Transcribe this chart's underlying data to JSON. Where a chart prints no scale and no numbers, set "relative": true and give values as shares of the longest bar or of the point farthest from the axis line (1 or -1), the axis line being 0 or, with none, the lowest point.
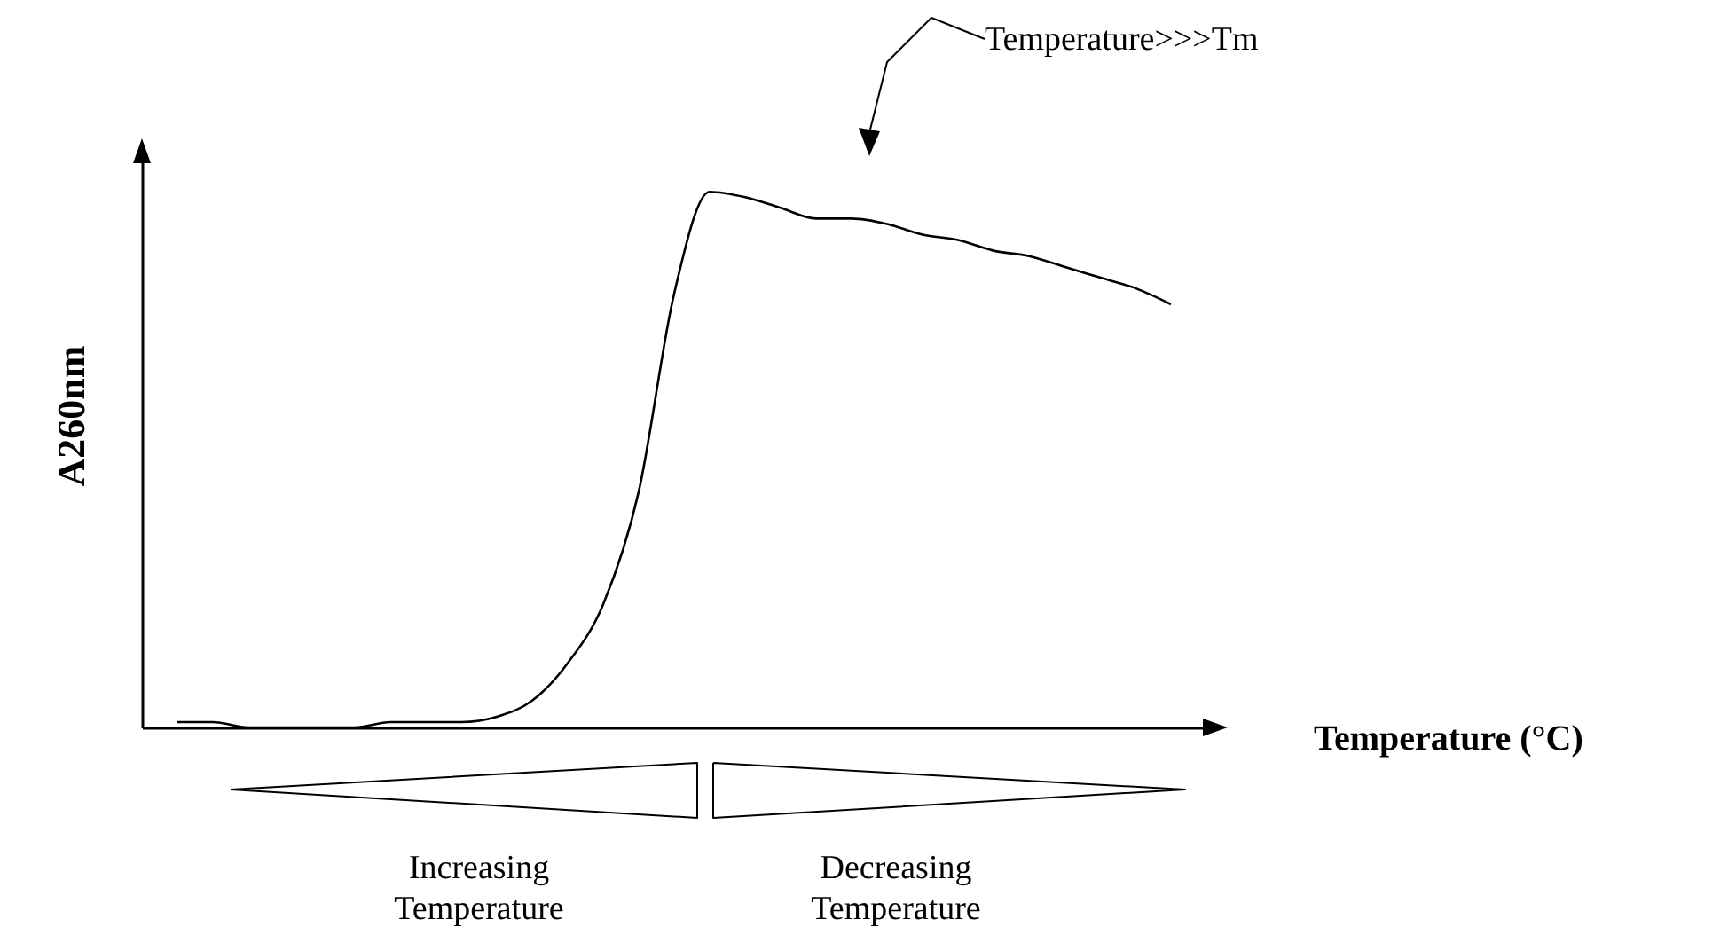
{
  "chart_data": {
    "type": "line",
    "relative": true,
    "xlabel": "Temperature (°C)",
    "ylabel": "A260nm",
    "color": "#000000",
    "categories": [
      null,
      null,
      null,
      null,
      null,
      null,
      null,
      null,
      null,
      null,
      null,
      null,
      null,
      null,
      null,
      null,
      null,
      null,
      null,
      null,
      null,
      null,
      null,
      null,
      null,
      null,
      null,
      null,
      null
    ],
    "values": [
      0.01,
      0.01,
      0.0,
      0.0,
      0.0,
      0.0,
      0.01,
      0.01,
      0.01,
      0.02,
      0.05,
      0.12,
      0.23,
      0.44,
      0.81,
      1.0,
      0.99,
      0.97,
      0.95,
      0.95,
      0.94,
      0.92,
      0.91,
      0.89,
      0.88,
      0.86,
      0.84,
      0.82,
      0.79
    ],
    "annotations": [
      "Temperature>>>Tm",
      "Increasing Temperature",
      "Decreasing Temperature"
    ]
  }
}
